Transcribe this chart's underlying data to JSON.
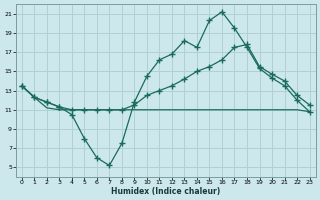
{
  "xlabel": "Humidex (Indice chaleur)",
  "bg_color": "#cce8ec",
  "grid_color": "#b0d0d4",
  "line_color": "#1a6b5a",
  "xlim": [
    -0.5,
    23.5
  ],
  "ylim": [
    4,
    22
  ],
  "xticks": [
    0,
    1,
    2,
    3,
    4,
    5,
    6,
    7,
    8,
    9,
    10,
    11,
    12,
    13,
    14,
    15,
    16,
    17,
    18,
    19,
    20,
    21,
    22,
    23
  ],
  "yticks": [
    5,
    7,
    9,
    11,
    13,
    15,
    17,
    19,
    21
  ],
  "line1_x": [
    0,
    1,
    2,
    3,
    4,
    5,
    6,
    7,
    8,
    9,
    10,
    11,
    12,
    13,
    14,
    15,
    16,
    17,
    18,
    19,
    20,
    21,
    22,
    23
  ],
  "line1_y": [
    13.5,
    12.3,
    11.8,
    11.3,
    10.5,
    8.0,
    6.0,
    5.2,
    7.5,
    11.8,
    14.5,
    16.2,
    16.8,
    18.2,
    17.5,
    20.3,
    21.2,
    19.5,
    17.5,
    15.3,
    14.3,
    13.5,
    12.0,
    10.8
  ],
  "line2_x": [
    0,
    1,
    2,
    3,
    4,
    5,
    6,
    7,
    8,
    9,
    10,
    11,
    12,
    13,
    14,
    15,
    16,
    17,
    18,
    19,
    20,
    21,
    22,
    23
  ],
  "line2_y": [
    13.5,
    12.3,
    11.8,
    11.3,
    11.0,
    11.0,
    11.0,
    11.0,
    11.0,
    11.5,
    12.5,
    13.0,
    13.5,
    14.2,
    15.0,
    15.5,
    16.2,
    17.5,
    17.8,
    15.5,
    14.7,
    14.0,
    12.5,
    11.5
  ],
  "line3_x": [
    0,
    1,
    2,
    3,
    4,
    5,
    6,
    7,
    8,
    9,
    10,
    11,
    12,
    13,
    14,
    15,
    16,
    17,
    18,
    19,
    20,
    21,
    22,
    23
  ],
  "line3_y": [
    13.5,
    12.3,
    11.2,
    11.0,
    11.0,
    11.0,
    11.0,
    11.0,
    11.0,
    11.0,
    11.0,
    11.0,
    11.0,
    11.0,
    11.0,
    11.0,
    11.0,
    11.0,
    11.0,
    11.0,
    11.0,
    11.0,
    11.0,
    10.8
  ]
}
